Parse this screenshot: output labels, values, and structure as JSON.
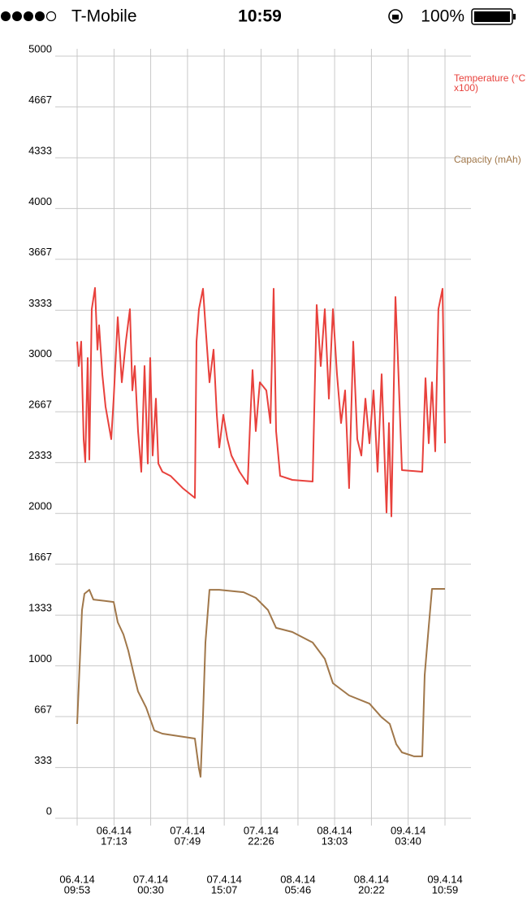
{
  "status_bar": {
    "carrier": "T-Mobile",
    "time": "10:59",
    "battery": "100%"
  },
  "chart_data": {
    "type": "line",
    "ylim": [
      0,
      5000
    ],
    "yticks": [
      0,
      333,
      667,
      1000,
      1333,
      1667,
      2000,
      2333,
      2667,
      3000,
      3333,
      3667,
      4000,
      4333,
      4667,
      5000
    ],
    "xlim": [
      "2014-04-06T09:53",
      "2014-04-09T10:59"
    ],
    "xticks": [
      {
        "value": "2014-04-06T09:53",
        "label": [
          "06.4.14",
          "09:53"
        ]
      },
      {
        "value": "2014-04-06T17:13",
        "label": [
          "06.4.14",
          "17:13"
        ]
      },
      {
        "value": "2014-04-07T00:30",
        "label": [
          "07.4.14",
          "00:30"
        ]
      },
      {
        "value": "2014-04-07T07:49",
        "label": [
          "07.4.14",
          "07:49"
        ]
      },
      {
        "value": "2014-04-07T15:07",
        "label": [
          "07.4.14",
          "15:07"
        ]
      },
      {
        "value": "2014-04-07T22:26",
        "label": [
          "07.4.14",
          "22:26"
        ]
      },
      {
        "value": "2014-04-08T05:46",
        "label": [
          "08.4.14",
          "05:46"
        ]
      },
      {
        "value": "2014-04-08T13:03",
        "label": [
          "08.4.14",
          "13:03"
        ]
      },
      {
        "value": "2014-04-08T20:22",
        "label": [
          "08.4.14",
          "20:22"
        ]
      },
      {
        "value": "2014-04-09T03:40",
        "label": [
          "09.4.14",
          "03:40"
        ]
      },
      {
        "value": "2014-04-09T10:59",
        "label": [
          "09.4.14",
          "10:59"
        ]
      }
    ],
    "grid": true,
    "series": [
      {
        "name": "Temperature (°C x100)",
        "color": "#e8413c",
        "x": [
          "2014-04-06T09:53",
          "2014-04-06T10:12",
          "2014-04-06T10:41",
          "2014-04-06T11:10",
          "2014-04-06T11:30",
          "2014-04-06T11:59",
          "2014-04-06T12:18",
          "2014-04-06T12:47",
          "2014-04-06T13:26",
          "2014-04-06T13:55",
          "2014-04-06T14:14",
          "2014-04-06T14:53",
          "2014-04-06T15:32",
          "2014-04-06T16:40",
          "2014-04-06T17:09",
          "2014-04-06T17:57",
          "2014-04-06T18:46",
          "2014-04-06T19:34",
          "2014-04-06T20:22",
          "2014-04-06T20:51",
          "2014-04-06T21:20",
          "2014-04-06T21:59",
          "2014-04-06T22:38",
          "2014-04-06T23:17",
          "2014-04-06T23:55",
          "2014-04-07T00:24",
          "2014-04-07T00:53",
          "2014-04-07T01:32",
          "2014-04-07T02:01",
          "2014-04-07T02:50",
          "2014-04-07T04:26",
          "2014-04-07T06:52",
          "2014-04-07T09:17",
          "2014-04-07T09:36",
          "2014-04-07T10:05",
          "2014-04-07T10:54",
          "2014-04-07T11:23",
          "2014-04-07T12:11",
          "2014-04-07T13:00",
          "2014-04-07T13:38",
          "2014-04-07T14:07",
          "2014-04-07T14:56",
          "2014-04-07T15:44",
          "2014-04-07T16:33",
          "2014-04-07T18:09",
          "2014-04-07T19:46",
          "2014-04-07T20:15",
          "2014-04-07T20:44",
          "2014-04-07T21:23",
          "2014-04-07T22:11",
          "2014-04-07T23:29",
          "2014-04-08T00:17",
          "2014-04-08T00:56",
          "2014-04-08T01:25",
          "2014-04-08T02:14",
          "2014-04-08T04:39",
          "2014-04-08T08:41",
          "2014-04-08T09:29",
          "2014-04-08T10:18",
          "2014-04-08T11:06",
          "2014-04-08T11:54",
          "2014-04-08T12:43",
          "2014-04-08T13:31",
          "2014-04-08T14:20",
          "2014-04-08T15:08",
          "2014-04-08T15:56",
          "2014-04-08T16:45",
          "2014-04-08T17:33",
          "2014-04-08T18:22",
          "2014-04-08T19:10",
          "2014-04-08T19:59",
          "2014-04-08T20:47",
          "2014-04-08T21:35",
          "2014-04-08T22:24",
          "2014-04-08T23:22",
          "2014-04-08T23:51",
          "2014-04-09T00:20",
          "2014-04-09T01:08",
          "2014-04-09T01:37",
          "2014-04-09T02:26",
          "2014-04-09T06:28",
          "2014-04-09T07:07",
          "2014-04-09T07:45",
          "2014-04-09T08:24",
          "2014-04-09T09:03",
          "2014-04-09T09:41",
          "2014-04-09T10:30",
          "2014-04-09T10:59"
        ],
        "values": [
          3127,
          2967,
          3127,
          2487,
          2337,
          3020,
          2353,
          3340,
          3479,
          3074,
          3234,
          2913,
          2700,
          2487,
          2753,
          3287,
          2860,
          3127,
          3340,
          2807,
          2967,
          2540,
          2273,
          2967,
          2327,
          3020,
          2380,
          2753,
          2327,
          2273,
          2246,
          2166,
          2102,
          3127,
          3340,
          3474,
          3234,
          2860,
          3074,
          2647,
          2433,
          2647,
          2487,
          2380,
          2273,
          2193,
          2593,
          2940,
          2540,
          2860,
          2807,
          2593,
          3474,
          2540,
          2246,
          2220,
          2209,
          3367,
          2967,
          3340,
          2753,
          3340,
          2913,
          2593,
          2807,
          2166,
          3127,
          2487,
          2380,
          2753,
          2460,
          2807,
          2273,
          2913,
          2006,
          2593,
          1980,
          3420,
          3020,
          2284,
          2273,
          2887,
          2460,
          2860,
          2407,
          3340,
          3474,
          2460
        ]
      },
      {
        "name": "Capacity (mAh)",
        "color": "#a0774a",
        "x": [
          "2014-04-06T09:53",
          "2014-04-06T10:22",
          "2014-04-06T10:51",
          "2014-04-06T11:20",
          "2014-04-06T12:18",
          "2014-04-06T13:07",
          "2014-04-06T17:09",
          "2014-04-06T17:57",
          "2014-04-06T19:05",
          "2014-04-06T20:03",
          "2014-04-06T21:11",
          "2014-04-06T21:59",
          "2014-04-06T23:36",
          "2014-04-07T01:13",
          "2014-04-07T02:50",
          "2014-04-07T06:03",
          "2014-04-07T09:17",
          "2014-04-07T10:05",
          "2014-04-07T10:25",
          "2014-04-07T10:54",
          "2014-04-07T11:23",
          "2014-04-07T12:11",
          "2014-04-07T14:07",
          "2014-04-07T18:58",
          "2014-04-07T21:23",
          "2014-04-07T23:48",
          "2014-04-08T01:25",
          "2014-04-08T04:39",
          "2014-04-08T08:41",
          "2014-04-08T11:06",
          "2014-04-08T12:43",
          "2014-04-08T15:56",
          "2014-04-08T19:59",
          "2014-04-08T22:24",
          "2014-04-09T00:01",
          "2014-04-09T01:18",
          "2014-04-09T02:26",
          "2014-04-09T04:51",
          "2014-04-09T06:28",
          "2014-04-09T06:57",
          "2014-04-09T07:45",
          "2014-04-09T08:24",
          "2014-04-09T10:59"
        ],
        "values": [
          619,
          993,
          1366,
          1473,
          1499,
          1435,
          1419,
          1286,
          1206,
          1099,
          939,
          832,
          726,
          576,
          555,
          539,
          523,
          325,
          272,
          672,
          1153,
          1499,
          1499,
          1483,
          1446,
          1366,
          1249,
          1222,
          1153,
          1046,
          886,
          806,
          752,
          662,
          619,
          486,
          432,
          406,
          406,
          939,
          1259,
          1505,
          1505
        ]
      }
    ]
  }
}
